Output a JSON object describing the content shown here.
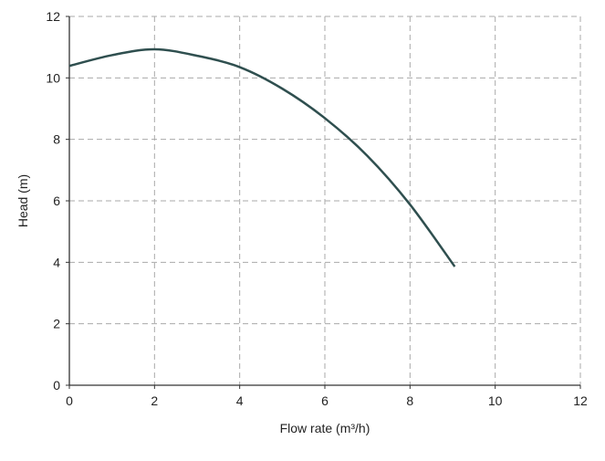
{
  "chart_data": {
    "type": "line",
    "title": "",
    "xlabel": "Flow rate (m³/h)",
    "ylabel": "Head (m)",
    "xlim": [
      0,
      12
    ],
    "ylim": [
      0,
      12
    ],
    "xticks": [
      "0",
      "2",
      "4",
      "6",
      "8",
      "10",
      "12"
    ],
    "yticks": [
      "0",
      "2",
      "4",
      "6",
      "8",
      "10",
      "12"
    ],
    "grid": true,
    "line_color": "#2f4f4f",
    "series": [
      {
        "x": [
          0,
          1,
          2,
          3,
          4,
          5,
          6,
          7,
          8,
          9.05
        ],
        "y": [
          10.39,
          10.74,
          10.93,
          10.72,
          10.35,
          9.65,
          8.69,
          7.46,
          5.88,
          3.86
        ]
      }
    ]
  }
}
